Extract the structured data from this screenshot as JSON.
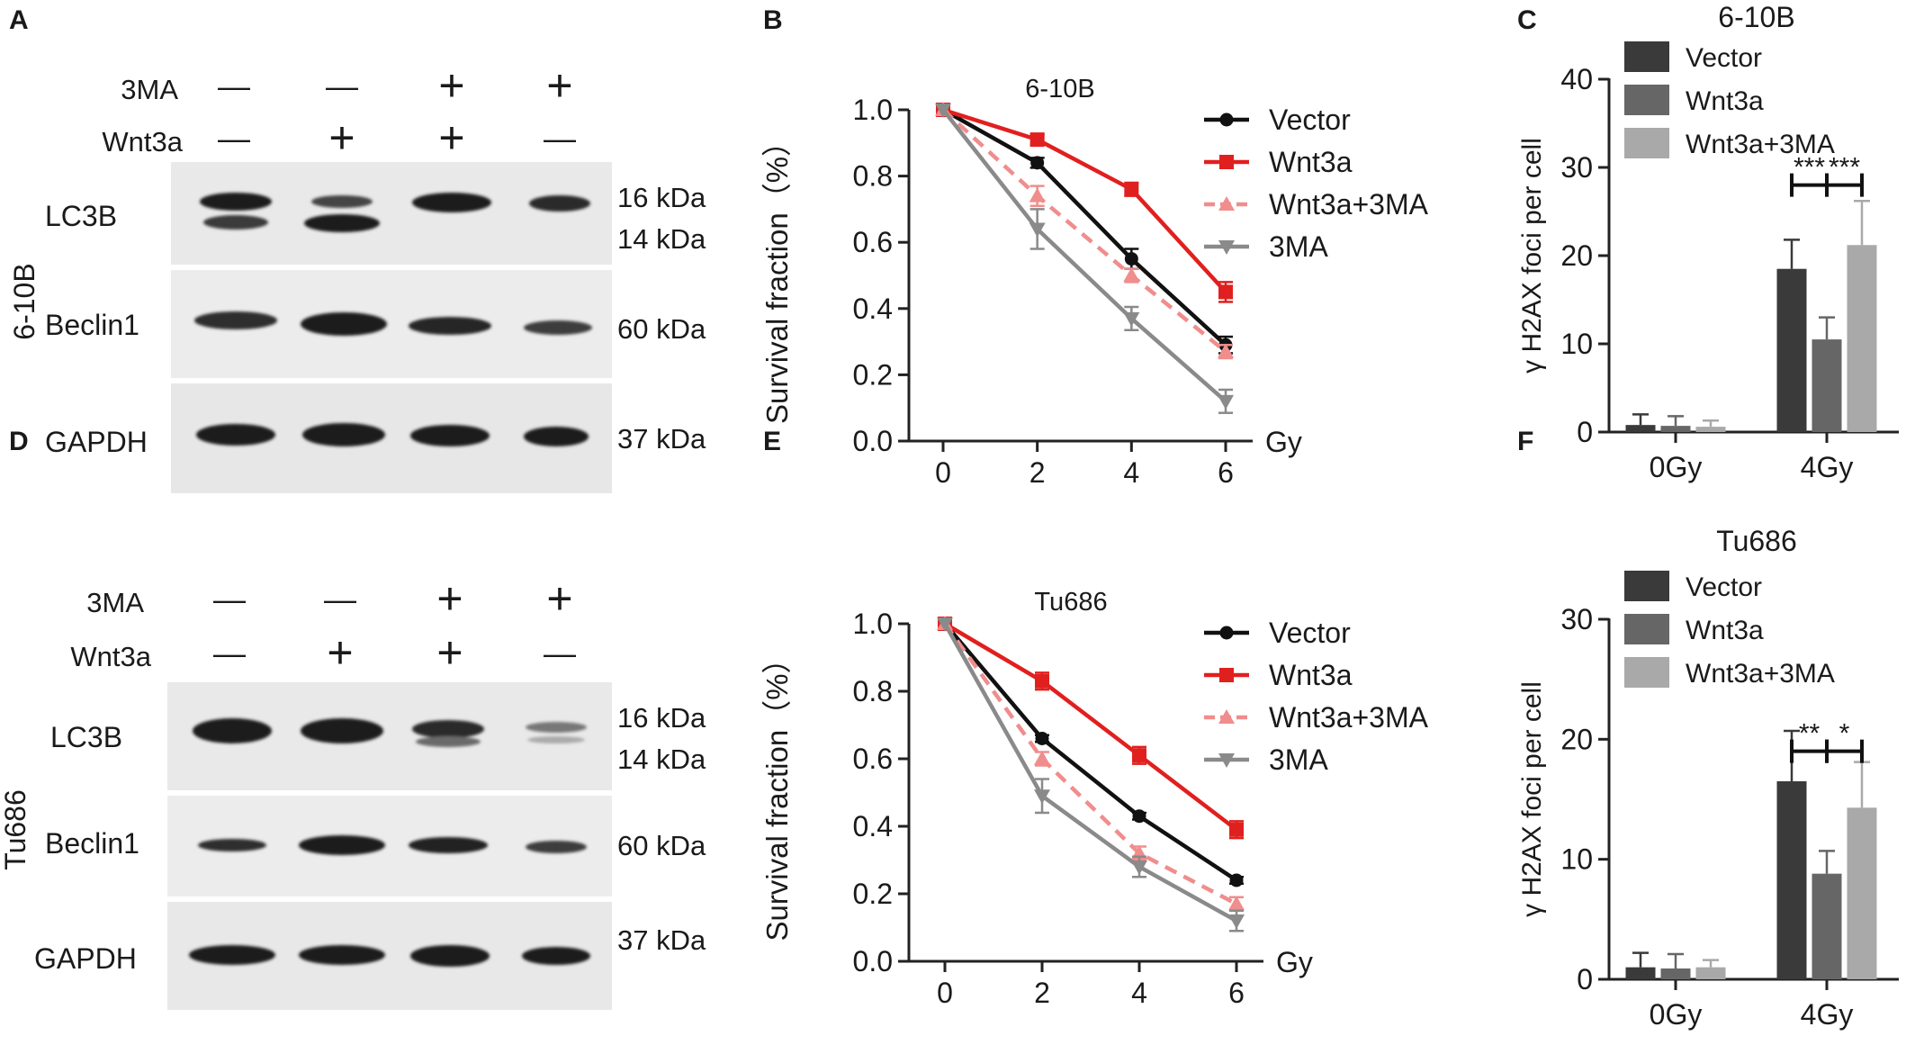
{
  "panels": {
    "A": "A",
    "B": "B",
    "C": "C",
    "D": "D",
    "E": "E",
    "F": "F"
  },
  "blots": [
    {
      "cell_line": "6-10B",
      "treatments": [
        {
          "label": "3MA",
          "signs": [
            "—",
            "—",
            "+",
            "+"
          ]
        },
        {
          "label": "Wnt3a",
          "signs": [
            "—",
            "+",
            "+",
            "—"
          ]
        }
      ],
      "rows": [
        {
          "label": "LC3B",
          "kda": [
            "16 kDa",
            "14 kDa"
          ]
        },
        {
          "label": "Beclin1",
          "kda": [
            "60 kDa"
          ]
        },
        {
          "label": "GAPDH",
          "kda": [
            "37 kDa"
          ]
        }
      ]
    },
    {
      "cell_line": "Tu686",
      "treatments": [
        {
          "label": "3MA",
          "signs": [
            "—",
            "—",
            "+",
            "+"
          ]
        },
        {
          "label": "Wnt3a",
          "signs": [
            "—",
            "+",
            "+",
            "—"
          ]
        }
      ],
      "rows": [
        {
          "label": "LC3B",
          "kda": [
            "16 kDa",
            "14 kDa"
          ]
        },
        {
          "label": "Beclin1",
          "kda": [
            "60 kDa"
          ]
        },
        {
          "label": "GAPDH",
          "kda": [
            "37 kDa"
          ]
        }
      ]
    }
  ],
  "colors": {
    "vector": "#111111",
    "wnt3a": "#e0201f",
    "wnt3a_3ma": "#f08d8d",
    "ma3": "#8a8a8a",
    "bar_vector": "#3a3a3a",
    "bar_wnt3a": "#666666",
    "bar_wnt3a_3ma": "#a9a9a9"
  },
  "chart_data": [
    {
      "panel": "B",
      "type": "line",
      "title": "6-10B",
      "xlabel": "Gy",
      "ylabel": "Survival fraction（%）",
      "x": [
        0,
        2,
        4,
        6
      ],
      "xlim": [
        0,
        6
      ],
      "ylim": [
        0,
        1.0
      ],
      "yticks": [
        "0.0",
        "0.2",
        "0.4",
        "0.6",
        "0.8",
        "1.0"
      ],
      "xticks": [
        "0",
        "2",
        "4",
        "6"
      ],
      "legend_position": "top-right",
      "series": [
        {
          "name": "Vector",
          "values": [
            1.0,
            0.84,
            0.55,
            0.29
          ],
          "err": [
            0,
            0.015,
            0.03,
            0.025
          ],
          "marker": "circle",
          "dashed": false,
          "color": "#111111"
        },
        {
          "name": "Wnt3a",
          "values": [
            1.0,
            0.91,
            0.76,
            0.45
          ],
          "err": [
            0,
            0.015,
            0.02,
            0.03
          ],
          "marker": "square",
          "dashed": false,
          "color": "#e0201f"
        },
        {
          "name": "Wnt3a+3MA",
          "values": [
            1.0,
            0.74,
            0.5,
            0.27
          ],
          "err": [
            0,
            0.03,
            0.02,
            0.02
          ],
          "marker": "triangle-up",
          "dashed": true,
          "color": "#f08d8d"
        },
        {
          "name": "3MA",
          "values": [
            1.0,
            0.64,
            0.37,
            0.12
          ],
          "err": [
            0,
            0.06,
            0.035,
            0.035
          ],
          "marker": "triangle-down",
          "dashed": false,
          "color": "#8a8a8a"
        }
      ]
    },
    {
      "panel": "C",
      "type": "bar",
      "title": "6-10B",
      "ylabel": "γ H2AX foci per cell",
      "categories": [
        "0Gy",
        "4Gy"
      ],
      "ylim": [
        0,
        40
      ],
      "yticks": [
        "0",
        "10",
        "20",
        "30",
        "40"
      ],
      "legend_position": "top-left",
      "series": [
        {
          "name": "Vector",
          "values": [
            0.8,
            18.5
          ],
          "err": [
            1.2,
            3.3
          ],
          "color": "#3a3a3a"
        },
        {
          "name": "Wnt3a",
          "values": [
            0.7,
            10.5
          ],
          "err": [
            1.1,
            2.5
          ],
          "color": "#666666"
        },
        {
          "name": "Wnt3a+3MA",
          "values": [
            0.6,
            21.2
          ],
          "err": [
            0.7,
            5.0
          ],
          "color": "#a9a9a9"
        }
      ],
      "significance": [
        {
          "between": [
            0,
            1
          ],
          "label": "***",
          "y": 28
        },
        {
          "between": [
            1,
            2
          ],
          "label": "***",
          "y": 28
        }
      ]
    },
    {
      "panel": "E",
      "type": "line",
      "title": "Tu686",
      "xlabel": "Gy",
      "ylabel": "Survival fraction（%）",
      "x": [
        0,
        2,
        4,
        6
      ],
      "xlim": [
        0,
        6
      ],
      "ylim": [
        0,
        1.0
      ],
      "yticks": [
        "0.0",
        "0.2",
        "0.4",
        "0.6",
        "0.8",
        "1.0"
      ],
      "xticks": [
        "0",
        "2",
        "4",
        "6"
      ],
      "legend_position": "top-right",
      "series": [
        {
          "name": "Vector",
          "values": [
            1.0,
            0.66,
            0.43,
            0.24
          ],
          "err": [
            0,
            0.01,
            0.01,
            0.01
          ],
          "marker": "circle",
          "dashed": false,
          "color": "#111111"
        },
        {
          "name": "Wnt3a",
          "values": [
            1.0,
            0.83,
            0.61,
            0.39
          ],
          "err": [
            0,
            0.025,
            0.025,
            0.025
          ],
          "marker": "square",
          "dashed": false,
          "color": "#e0201f"
        },
        {
          "name": "Wnt3a+3MA",
          "values": [
            1.0,
            0.6,
            0.32,
            0.17
          ],
          "err": [
            0,
            0.02,
            0.02,
            0.02
          ],
          "marker": "triangle-up",
          "dashed": true,
          "color": "#f08d8d"
        },
        {
          "name": "3MA",
          "values": [
            1.0,
            0.49,
            0.28,
            0.12
          ],
          "err": [
            0,
            0.05,
            0.03,
            0.03
          ],
          "marker": "triangle-down",
          "dashed": false,
          "color": "#8a8a8a"
        }
      ]
    },
    {
      "panel": "F",
      "type": "bar",
      "title": "Tu686",
      "ylabel": "γ H2AX foci per cell",
      "categories": [
        "0Gy",
        "4Gy"
      ],
      "ylim": [
        0,
        30
      ],
      "yticks": [
        "0",
        "10",
        "20",
        "30"
      ],
      "legend_position": "top-left",
      "series": [
        {
          "name": "Vector",
          "values": [
            1.0,
            16.5
          ],
          "err": [
            1.2,
            4.2
          ],
          "color": "#3a3a3a"
        },
        {
          "name": "Wnt3a",
          "values": [
            0.9,
            8.8
          ],
          "err": [
            1.2,
            1.9
          ],
          "color": "#666666"
        },
        {
          "name": "Wnt3a+3MA",
          "values": [
            1.0,
            14.3
          ],
          "err": [
            0.6,
            3.8
          ],
          "color": "#a9a9a9"
        }
      ],
      "significance": [
        {
          "between": [
            0,
            1
          ],
          "label": "**",
          "y": 19
        },
        {
          "between": [
            1,
            2
          ],
          "label": "*",
          "y": 19
        }
      ]
    }
  ]
}
